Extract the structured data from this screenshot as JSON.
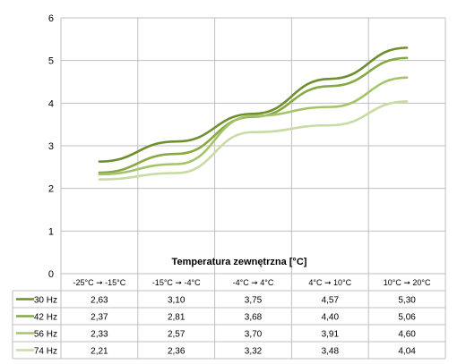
{
  "chart_data": {
    "type": "line",
    "xlabel": "Temperatura zewnętrzna [°C]",
    "categories": [
      "-25°C ➞ -15°C",
      "-15°C ➞ -4°C",
      "-4°C ➞ 4°C",
      "4°C ➞ 10°C",
      "10°C ➞ 20°C"
    ],
    "ylim": [
      0,
      6
    ],
    "yticks": [
      "0",
      "1",
      "2",
      "3",
      "4",
      "5",
      "6"
    ],
    "grid": true,
    "legend": "data-table",
    "series": [
      {
        "name": "30 Hz",
        "color": "#6f8f2f",
        "values": [
          2.63,
          3.1,
          3.75,
          4.57,
          5.3
        ],
        "labels": [
          "2,63",
          "3,10",
          "3,75",
          "4,57",
          "5,30"
        ]
      },
      {
        "name": "42 Hz",
        "color": "#87a943",
        "values": [
          2.37,
          2.81,
          3.68,
          4.4,
          5.06
        ],
        "labels": [
          "2,37",
          "2,81",
          "3,68",
          "4,40",
          "5,06"
        ]
      },
      {
        "name": "56 Hz",
        "color": "#a5c46a",
        "values": [
          2.33,
          2.57,
          3.7,
          3.91,
          4.6
        ],
        "labels": [
          "2,33",
          "2,57",
          "3,70",
          "3,91",
          "4,60"
        ]
      },
      {
        "name": "74 Hz",
        "color": "#c7dba3",
        "values": [
          2.21,
          2.36,
          3.32,
          3.48,
          4.04
        ],
        "labels": [
          "2,21",
          "2,36",
          "3,32",
          "3,48",
          "4,04"
        ]
      }
    ]
  }
}
